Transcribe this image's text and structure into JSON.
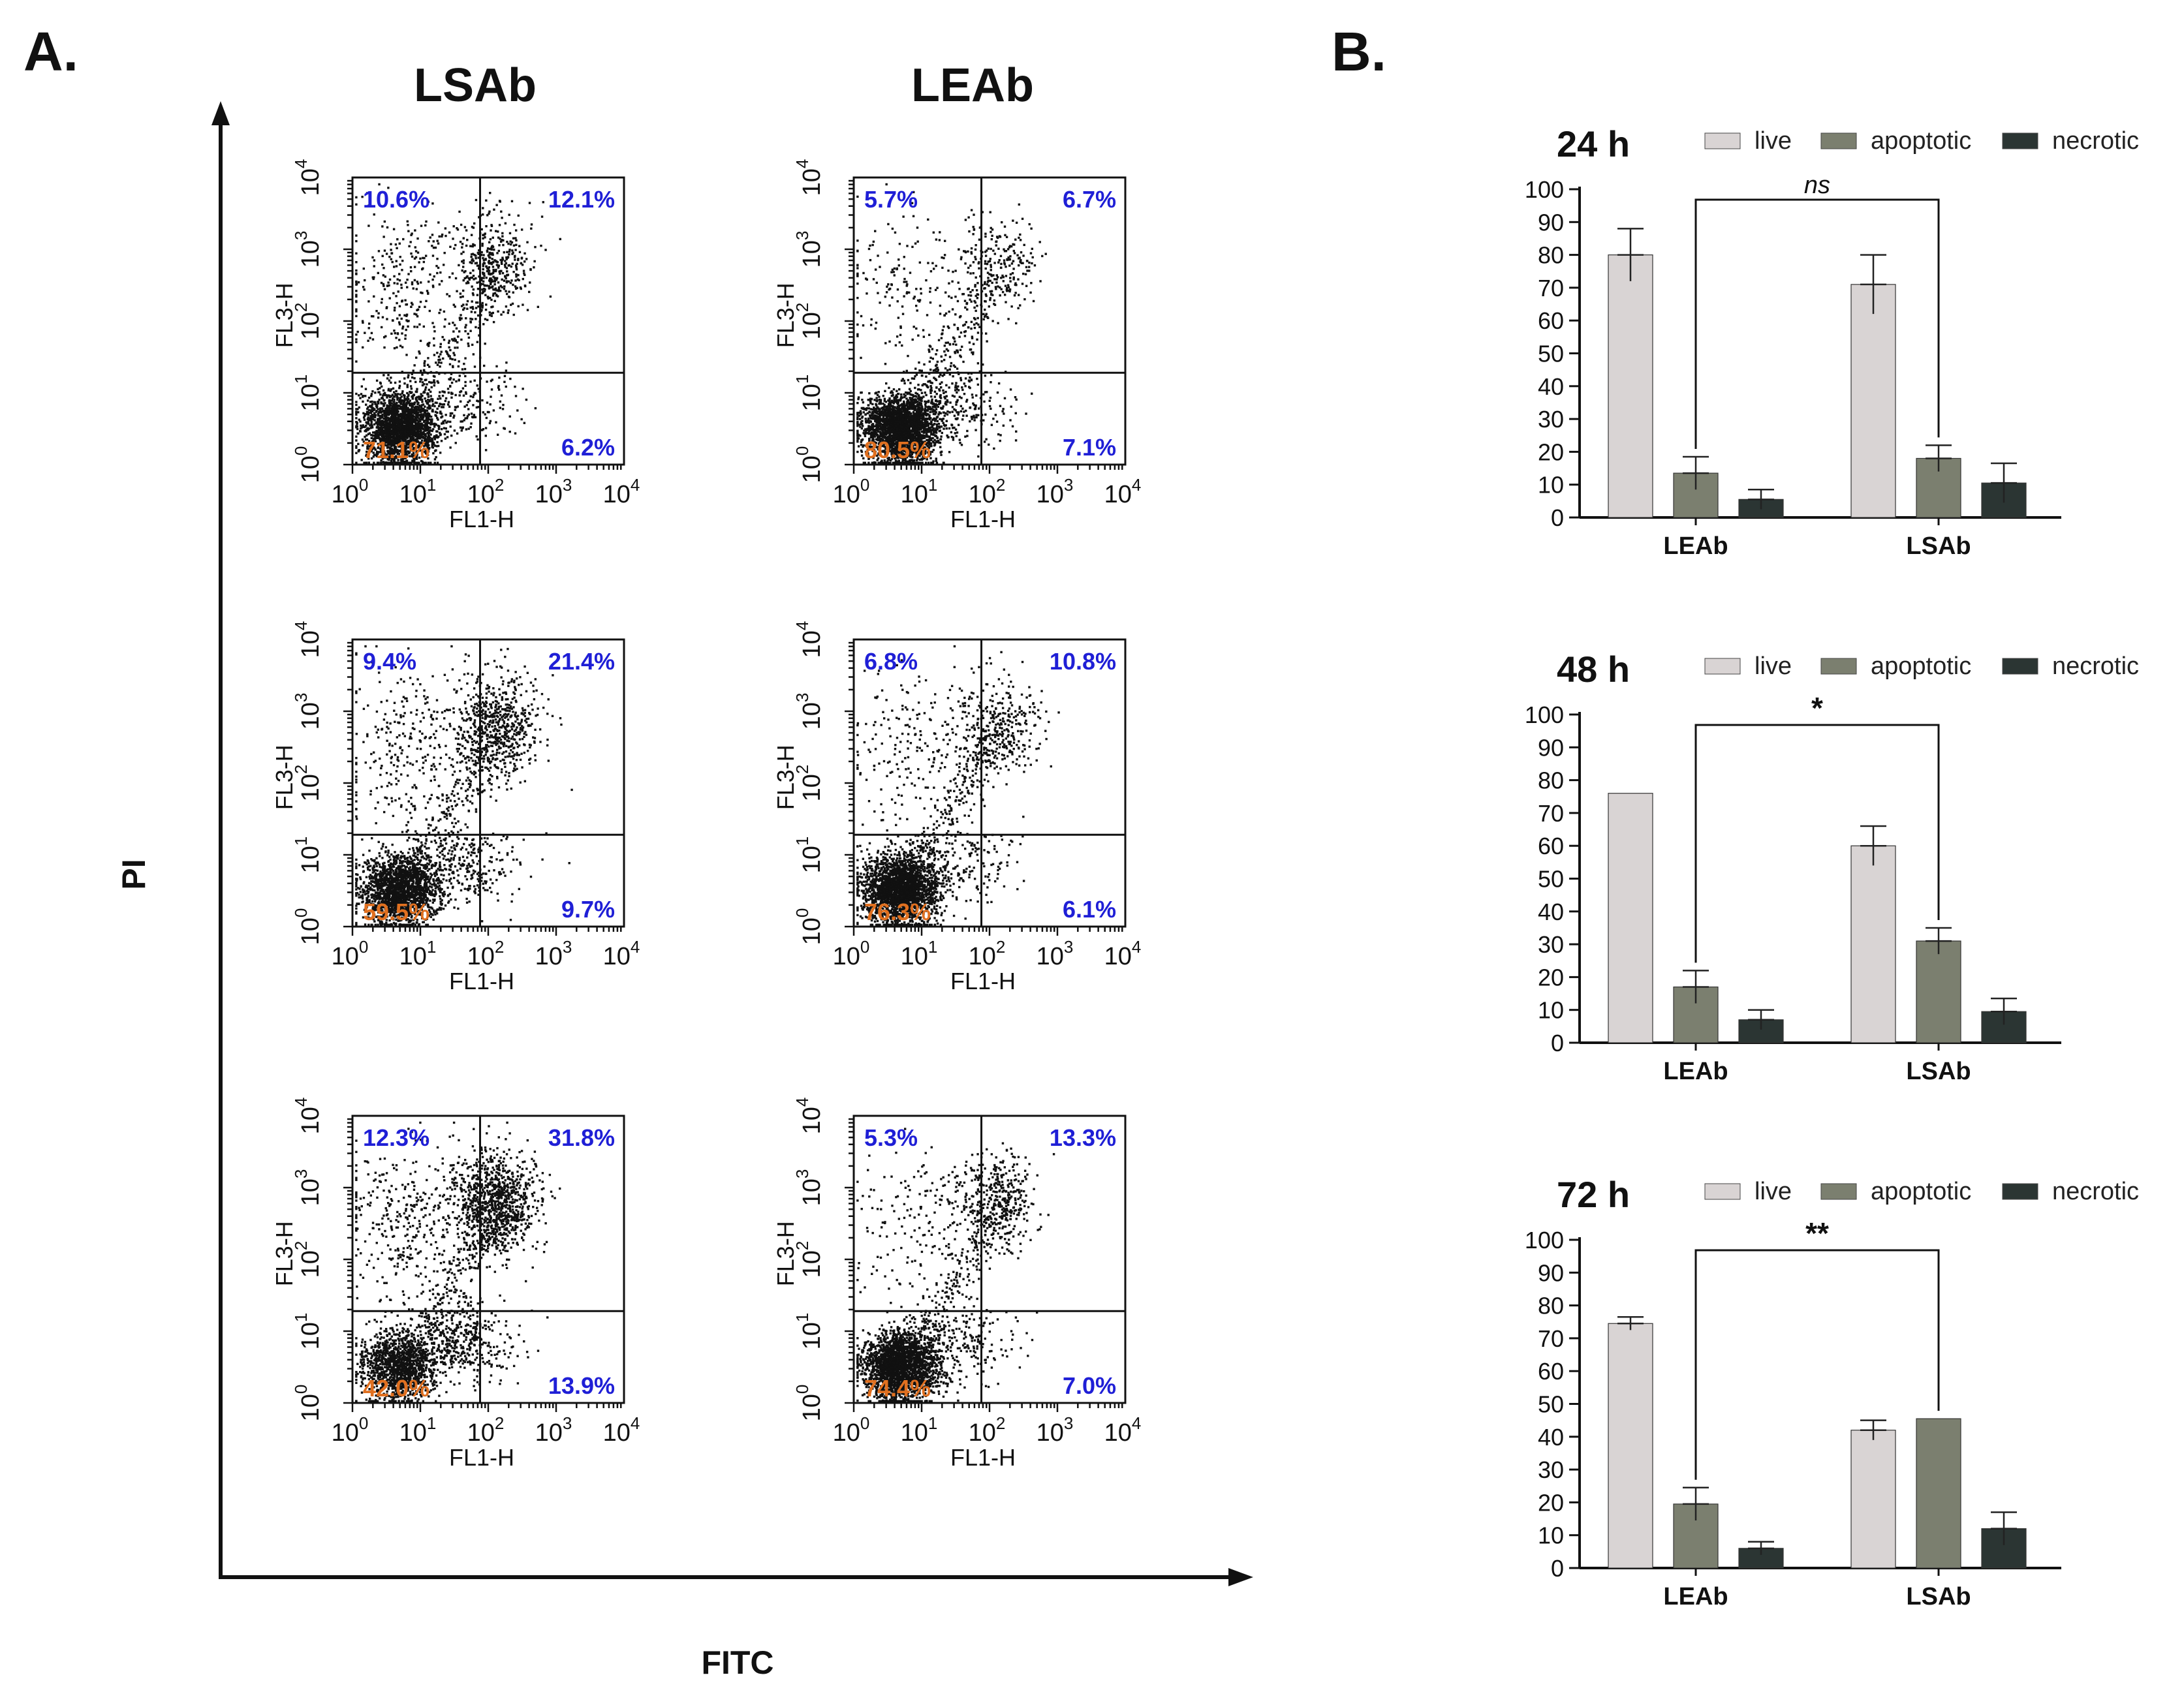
{
  "panel_a": {
    "label": "A.",
    "columns": [
      "LSAb",
      "LEAb"
    ],
    "x_axis_title": "FITC",
    "y_axis_title": "PI",
    "plot_xlabel": "FL1-H",
    "plot_ylabel": "FL3-H",
    "tick_base": "10",
    "tick_exponents": [
      "0",
      "1",
      "2",
      "3",
      "4"
    ],
    "colors": {
      "upper_quadrant": "#1f1fd6",
      "live_quadrant": "#e07020",
      "dots": "#111111"
    },
    "plots": [
      {
        "column": "LSAb",
        "row": 1,
        "upper_left": "10.6%",
        "upper_right": "12.1%",
        "lower_left": "71.1%",
        "lower_right": "6.2%"
      },
      {
        "column": "LEAb",
        "row": 1,
        "upper_left": "5.7%",
        "upper_right": "6.7%",
        "lower_left": "80.5%",
        "lower_right": "7.1%"
      },
      {
        "column": "LSAb",
        "row": 2,
        "upper_left": "9.4%",
        "upper_right": "21.4%",
        "lower_left": "59.5%",
        "lower_right": "9.7%"
      },
      {
        "column": "LEAb",
        "row": 2,
        "upper_left": "6.8%",
        "upper_right": "10.8%",
        "lower_left": "76.3%",
        "lower_right": "6.1%"
      },
      {
        "column": "LSAb",
        "row": 3,
        "upper_left": "12.3%",
        "upper_right": "31.8%",
        "lower_left": "42.0%",
        "lower_right": "13.9%"
      },
      {
        "column": "LEAb",
        "row": 3,
        "upper_left": "5.3%",
        "upper_right": "13.3%",
        "lower_left": "74.4%",
        "lower_right": "7.0%"
      }
    ]
  },
  "panel_b": {
    "label": "B."
  },
  "chart_data": [
    {
      "type": "bar",
      "title": "24 h",
      "categories": [
        "LEAb",
        "LSAb"
      ],
      "series": [
        {
          "name": "live",
          "color": "#d9d4d4",
          "values": [
            80,
            71
          ],
          "errors": [
            8,
            9
          ]
        },
        {
          "name": "apoptotic",
          "color": "#7b7f6f",
          "values": [
            13.5,
            18
          ],
          "errors": [
            5,
            4
          ]
        },
        {
          "name": "necrotic",
          "color": "#2b3533",
          "values": [
            5.5,
            10.5
          ],
          "errors": [
            3,
            6
          ]
        }
      ],
      "ylim": [
        0,
        100
      ],
      "yticks": [
        0,
        10,
        20,
        30,
        40,
        50,
        60,
        70,
        80,
        90,
        100
      ],
      "significance": "ns",
      "legend_position": "top"
    },
    {
      "type": "bar",
      "title": "48 h",
      "categories": [
        "LEAb",
        "LSAb"
      ],
      "series": [
        {
          "name": "live",
          "color": "#d9d4d4",
          "values": [
            76,
            60
          ],
          "errors": [
            0,
            6
          ]
        },
        {
          "name": "apoptotic",
          "color": "#7b7f6f",
          "values": [
            17,
            31
          ],
          "errors": [
            5,
            4
          ]
        },
        {
          "name": "necrotic",
          "color": "#2b3533",
          "values": [
            7,
            9.5
          ],
          "errors": [
            3,
            4
          ]
        }
      ],
      "ylim": [
        0,
        100
      ],
      "yticks": [
        0,
        10,
        20,
        30,
        40,
        50,
        60,
        70,
        80,
        90,
        100
      ],
      "significance": "*",
      "legend_position": "top"
    },
    {
      "type": "bar",
      "title": "72 h",
      "categories": [
        "LEAb",
        "LSAb"
      ],
      "series": [
        {
          "name": "live",
          "color": "#d9d4d4",
          "values": [
            74.5,
            42
          ],
          "errors": [
            2,
            3
          ]
        },
        {
          "name": "apoptotic",
          "color": "#7b7f6f",
          "values": [
            19.5,
            45.5
          ],
          "errors": [
            5,
            0
          ]
        },
        {
          "name": "necrotic",
          "color": "#2b3533",
          "values": [
            6,
            12
          ],
          "errors": [
            2,
            5
          ]
        }
      ],
      "ylim": [
        0,
        100
      ],
      "yticks": [
        0,
        10,
        20,
        30,
        40,
        50,
        60,
        70,
        80,
        90,
        100
      ],
      "significance": "**",
      "legend_position": "top"
    }
  ]
}
